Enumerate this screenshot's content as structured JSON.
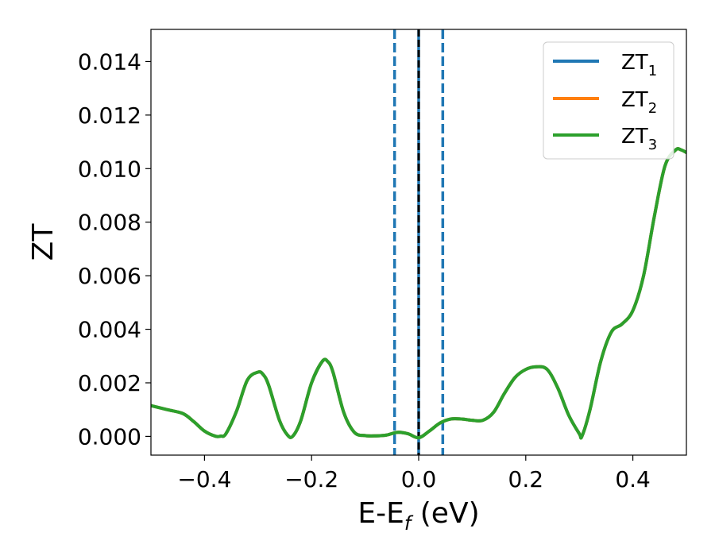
{
  "chart_data": {
    "type": "line",
    "xlabel": {
      "main": "E-E",
      "sub": "f",
      "suffix": " (eV)"
    },
    "ylabel": "ZT",
    "xlim": [
      -0.5,
      0.5
    ],
    "ylim": [
      -0.0007,
      0.0152
    ],
    "xticks": [
      -0.4,
      -0.2,
      0.0,
      0.2,
      0.4
    ],
    "xtick_labels": [
      "−0.4",
      "−0.2",
      "0.0",
      "0.2",
      "0.4"
    ],
    "yticks": [
      0.0,
      0.002,
      0.004,
      0.006,
      0.008,
      0.01,
      0.012,
      0.014
    ],
    "ytick_labels": [
      "0.000",
      "0.002",
      "0.004",
      "0.006",
      "0.008",
      "0.010",
      "0.012",
      "0.014"
    ],
    "grid": false,
    "legend_position": "top-right",
    "vertical_lines": [
      {
        "x": -0.045,
        "style": "dashed",
        "color": "#1f77b4"
      },
      {
        "x": 0.0,
        "style": "solid",
        "color": "#1f77b4"
      },
      {
        "x": 0.0,
        "style": "dashed",
        "color": "#000000"
      },
      {
        "x": 0.045,
        "style": "dashed",
        "color": "#1f77b4"
      }
    ],
    "x": [
      -0.5,
      -0.47,
      -0.44,
      -0.42,
      -0.4,
      -0.38,
      -0.37,
      -0.36,
      -0.34,
      -0.32,
      -0.3,
      -0.29,
      -0.28,
      -0.26,
      -0.245,
      -0.235,
      -0.22,
      -0.2,
      -0.18,
      -0.17,
      -0.16,
      -0.14,
      -0.12,
      -0.1,
      -0.08,
      -0.06,
      -0.04,
      -0.02,
      0.0,
      0.02,
      0.04,
      0.06,
      0.08,
      0.1,
      0.12,
      0.14,
      0.16,
      0.18,
      0.2,
      0.22,
      0.24,
      0.26,
      0.28,
      0.3,
      0.305,
      0.32,
      0.34,
      0.36,
      0.38,
      0.4,
      0.42,
      0.44,
      0.46,
      0.48,
      0.49,
      0.5
    ],
    "series": [
      {
        "name": "ZT",
        "name_sub": "1",
        "color": "#1f77b4",
        "y": [
          0.00115,
          0.001,
          0.00085,
          0.00055,
          0.0002,
          1e-05,
          1e-05,
          0.0001,
          0.00095,
          0.0021,
          0.0024,
          0.0023,
          0.0019,
          0.0006,
          5e-05,
          1e-05,
          0.0006,
          0.002,
          0.0028,
          0.0028,
          0.0024,
          0.0009,
          0.00015,
          3e-05,
          2e-05,
          5e-05,
          0.00015,
          0.0001,
          -5e-05,
          0.0002,
          0.0005,
          0.00065,
          0.00065,
          0.0006,
          0.0006,
          0.0009,
          0.0016,
          0.0022,
          0.0025,
          0.0026,
          0.0025,
          0.0018,
          0.0008,
          0.0001,
          1e-05,
          0.001,
          0.0028,
          0.0039,
          0.0042,
          0.0047,
          0.006,
          0.0082,
          0.0101,
          0.0107,
          0.0107,
          0.0106
        ]
      },
      {
        "name": "ZT",
        "name_sub": "2",
        "color": "#ff7f0e",
        "y": [
          0.00115,
          0.001,
          0.00085,
          0.00055,
          0.0002,
          1e-05,
          1e-05,
          0.0001,
          0.00095,
          0.0021,
          0.0024,
          0.0023,
          0.0019,
          0.0006,
          5e-05,
          1e-05,
          0.0006,
          0.002,
          0.0028,
          0.0028,
          0.0024,
          0.0009,
          0.00015,
          3e-05,
          2e-05,
          5e-05,
          0.00015,
          0.0001,
          -5e-05,
          0.0002,
          0.0005,
          0.00065,
          0.00065,
          0.0006,
          0.0006,
          0.0009,
          0.0016,
          0.0022,
          0.0025,
          0.0026,
          0.0025,
          0.0018,
          0.0008,
          0.0001,
          1e-05,
          0.001,
          0.0028,
          0.0039,
          0.0042,
          0.0047,
          0.006,
          0.0082,
          0.0101,
          0.0107,
          0.0107,
          0.0106
        ]
      },
      {
        "name": "ZT",
        "name_sub": "3",
        "color": "#2ca02c",
        "y": [
          0.00115,
          0.001,
          0.00085,
          0.00055,
          0.0002,
          1e-05,
          1e-05,
          0.0001,
          0.00095,
          0.0021,
          0.0024,
          0.0023,
          0.0019,
          0.0006,
          5e-05,
          1e-05,
          0.0006,
          0.002,
          0.0028,
          0.0028,
          0.0024,
          0.0009,
          0.00015,
          3e-05,
          2e-05,
          5e-05,
          0.00015,
          0.0001,
          -5e-05,
          0.0002,
          0.0005,
          0.00065,
          0.00065,
          0.0006,
          0.0006,
          0.0009,
          0.0016,
          0.0022,
          0.0025,
          0.0026,
          0.0025,
          0.0018,
          0.0008,
          0.0001,
          1e-05,
          0.001,
          0.0028,
          0.0039,
          0.0042,
          0.0047,
          0.006,
          0.0082,
          0.0101,
          0.0107,
          0.0107,
          0.0106
        ]
      }
    ]
  }
}
